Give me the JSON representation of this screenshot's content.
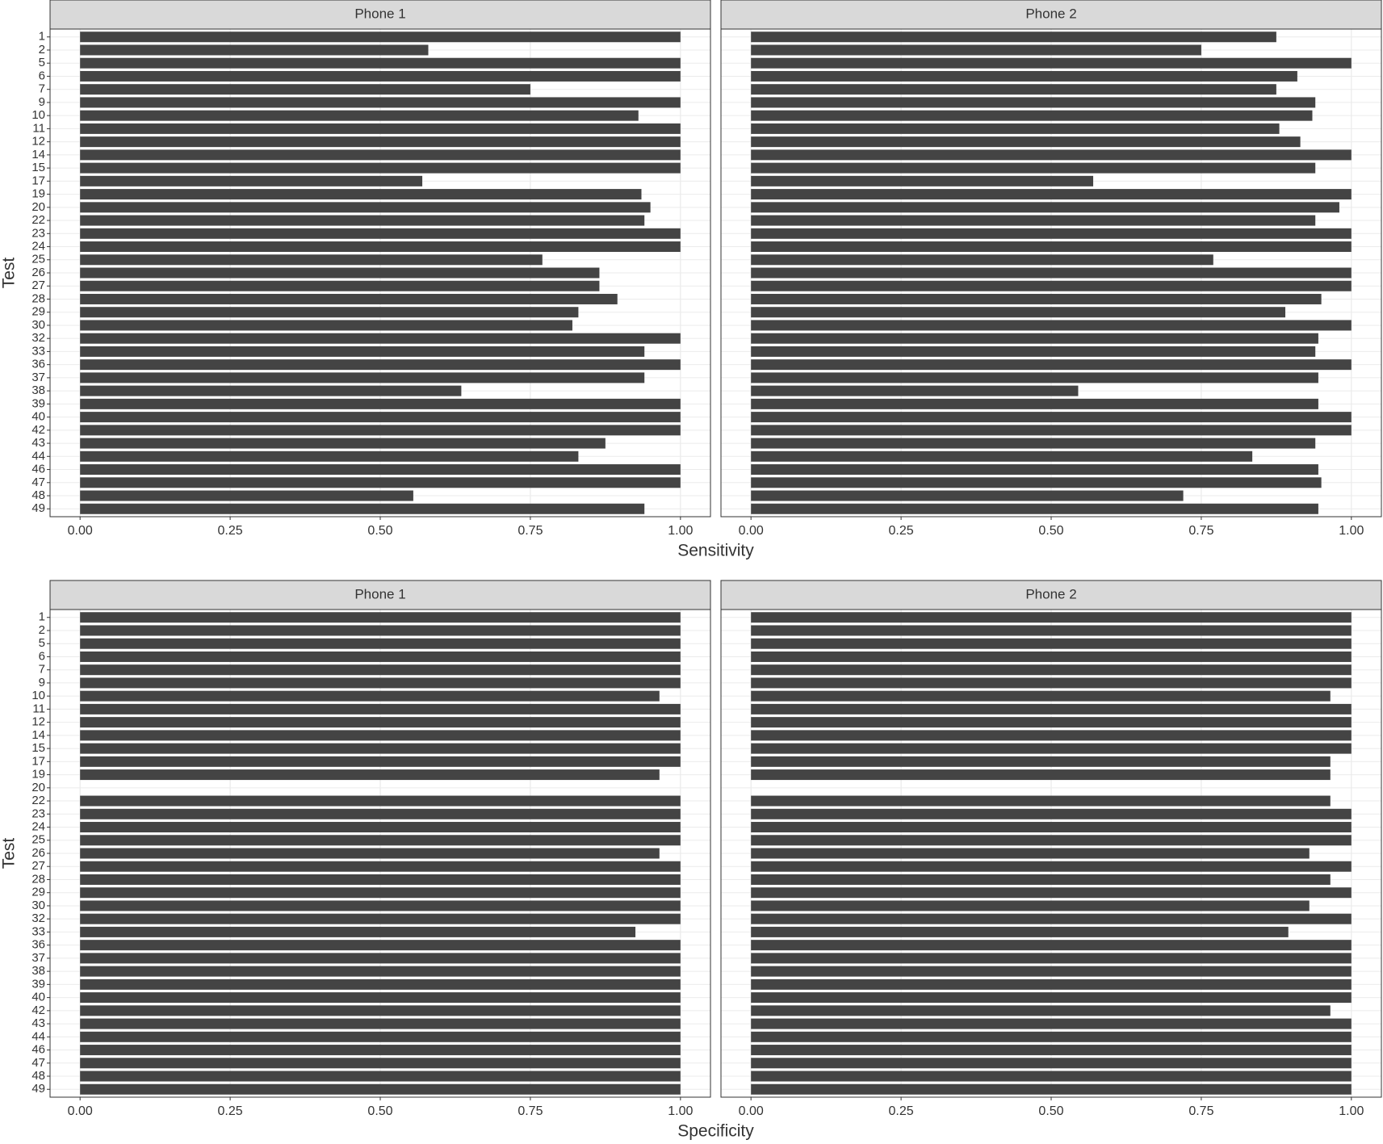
{
  "chart_data": [
    {
      "type": "bar",
      "orientation": "horizontal",
      "x_label": "Sensitivity",
      "y_label": "Test",
      "categories": [
        "1",
        "2",
        "5",
        "6",
        "7",
        "9",
        "10",
        "11",
        "12",
        "14",
        "15",
        "17",
        "19",
        "20",
        "22",
        "23",
        "24",
        "25",
        "26",
        "27",
        "28",
        "29",
        "30",
        "32",
        "33",
        "36",
        "37",
        "38",
        "39",
        "40",
        "42",
        "43",
        "44",
        "46",
        "47",
        "48",
        "49"
      ],
      "xlim": [
        -0.05,
        1.05
      ],
      "xticks": [
        {
          "value": 0,
          "label": "0.00"
        },
        {
          "value": 0.25,
          "label": "0.25"
        },
        {
          "value": 0.5,
          "label": "0.50"
        },
        {
          "value": 0.75,
          "label": "0.75"
        },
        {
          "value": 1,
          "label": "1.00"
        }
      ],
      "grid": true,
      "series": [
        {
          "name": "Phone 1",
          "color": "#444444",
          "values": [
            1,
            0.58,
            1,
            1,
            0.75,
            1,
            0.93,
            1,
            1,
            1,
            1,
            0.57,
            0.935,
            0.95,
            0.94,
            1,
            1,
            0.77,
            0.865,
            0.865,
            0.895,
            0.83,
            0.82,
            1,
            0.94,
            1,
            0.94,
            0.635,
            1,
            1,
            1,
            0.875,
            0.83,
            1,
            1,
            0.555,
            0.94
          ]
        },
        {
          "name": "Phone 2",
          "color": "#444444",
          "values": [
            0.875,
            0.75,
            1,
            0.91,
            0.875,
            0.94,
            0.935,
            0.88,
            0.915,
            1,
            0.94,
            0.57,
            1,
            0.98,
            0.94,
            1,
            1,
            0.77,
            1,
            1,
            0.95,
            0.89,
            1,
            0.945,
            0.94,
            1,
            0.945,
            0.545,
            0.945,
            1,
            1,
            0.94,
            0.835,
            0.945,
            0.95,
            0.72,
            0.945
          ]
        }
      ]
    },
    {
      "type": "bar",
      "orientation": "horizontal",
      "x_label": "Specificity",
      "y_label": "Test",
      "categories": [
        "1",
        "2",
        "5",
        "6",
        "7",
        "9",
        "10",
        "11",
        "12",
        "14",
        "15",
        "17",
        "19",
        "20",
        "22",
        "23",
        "24",
        "25",
        "26",
        "27",
        "28",
        "29",
        "30",
        "32",
        "33",
        "36",
        "37",
        "38",
        "39",
        "40",
        "42",
        "43",
        "44",
        "46",
        "47",
        "48",
        "49"
      ],
      "xlim": [
        -0.05,
        1.05
      ],
      "xticks": [
        {
          "value": 0,
          "label": "0.00"
        },
        {
          "value": 0.25,
          "label": "0.25"
        },
        {
          "value": 0.5,
          "label": "0.50"
        },
        {
          "value": 0.75,
          "label": "0.75"
        },
        {
          "value": 1,
          "label": "1.00"
        }
      ],
      "grid": true,
      "series": [
        {
          "name": "Phone 1",
          "color": "#444444",
          "values": [
            1,
            1,
            1,
            1,
            1,
            1,
            0.965,
            1,
            1,
            1,
            1,
            1,
            0.965,
            null,
            1,
            1,
            1,
            1,
            0.965,
            1,
            1,
            1,
            1,
            1,
            0.925,
            1,
            1,
            1,
            1,
            1,
            1,
            1,
            1,
            1,
            1,
            1,
            1
          ]
        },
        {
          "name": "Phone 2",
          "color": "#444444",
          "values": [
            1,
            1,
            1,
            1,
            1,
            1,
            0.965,
            1,
            1,
            1,
            1,
            0.965,
            0.965,
            null,
            0.965,
            1,
            1,
            1,
            0.93,
            1,
            0.965,
            1,
            0.93,
            1,
            0.895,
            1,
            1,
            1,
            1,
            1,
            0.965,
            1,
            1,
            1,
            1,
            1,
            1
          ]
        }
      ]
    }
  ]
}
